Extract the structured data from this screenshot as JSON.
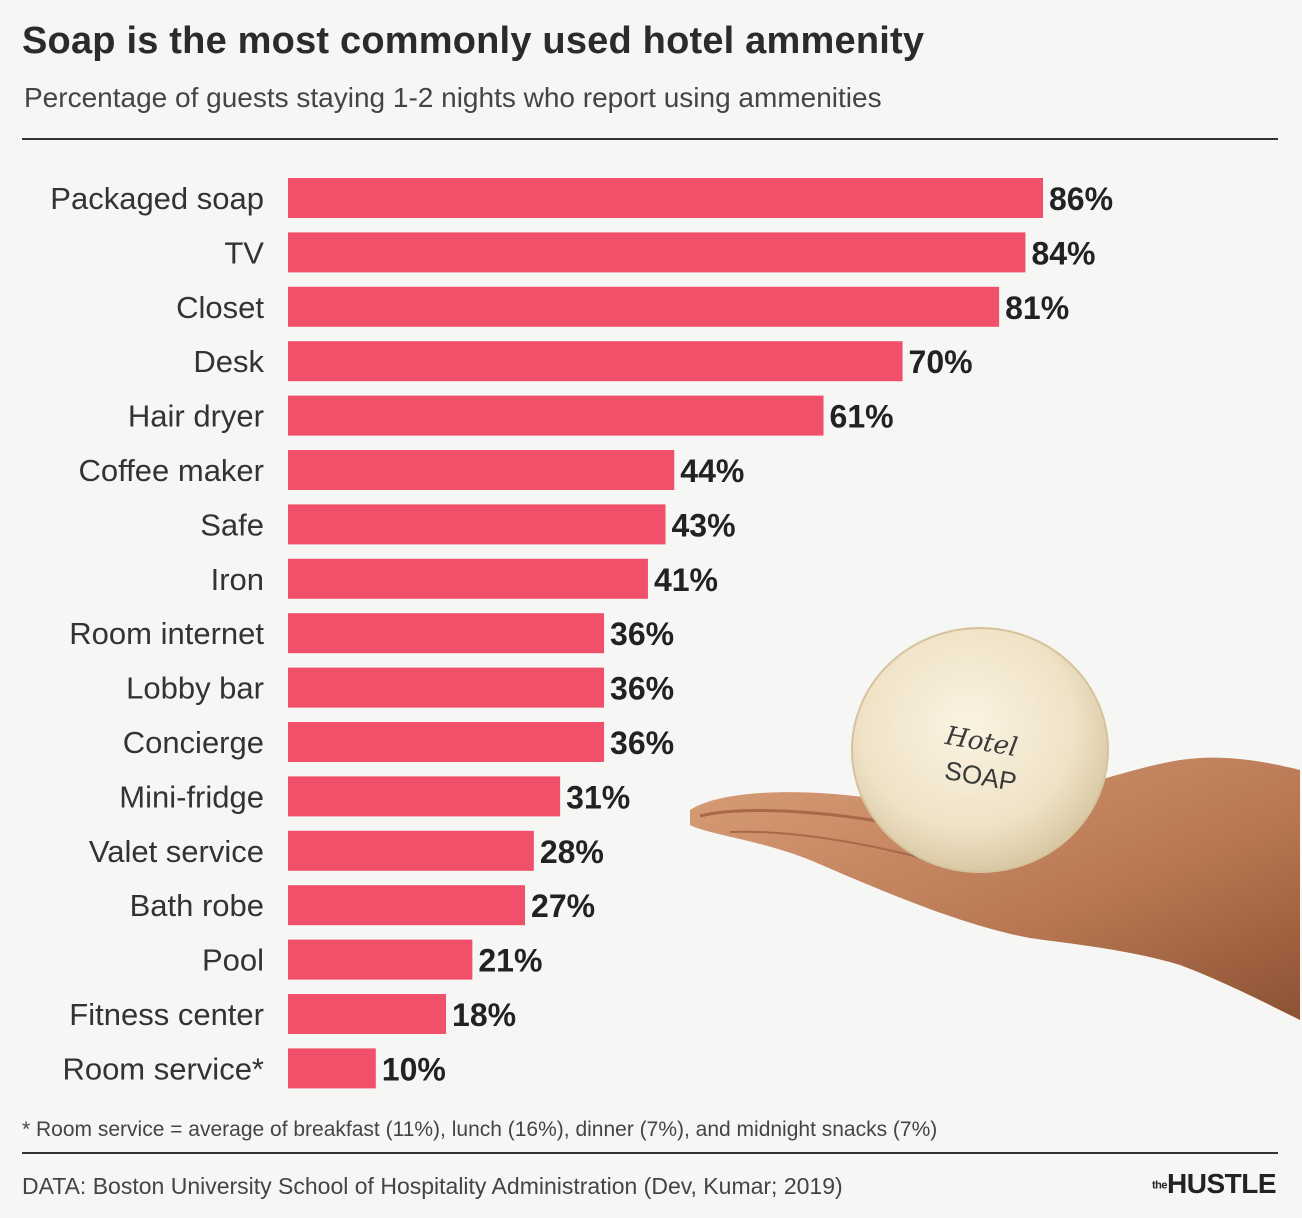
{
  "header": {
    "title": "Soap is the most commonly used hotel ammenity",
    "subtitle": "Percentage of guests staying 1-2 nights who report using ammenities"
  },
  "chart_data": {
    "type": "bar",
    "orientation": "horizontal",
    "categories": [
      "Packaged soap",
      "TV",
      "Closet",
      "Desk",
      "Hair dryer",
      "Coffee maker",
      "Safe",
      "Iron",
      "Room internet",
      "Lobby bar",
      "Concierge",
      "Mini-fridge",
      "Valet service",
      "Bath robe",
      "Pool",
      "Fitness center",
      "Room service*"
    ],
    "values": [
      86,
      84,
      81,
      70,
      61,
      44,
      43,
      41,
      36,
      36,
      36,
      31,
      28,
      27,
      21,
      18,
      10
    ],
    "value_labels": [
      "86%",
      "84%",
      "81%",
      "70%",
      "61%",
      "44%",
      "43%",
      "41%",
      "36%",
      "36%",
      "36%",
      "31%",
      "28%",
      "27%",
      "21%",
      "18%",
      "10%"
    ],
    "unit": "%",
    "xlim": [
      0,
      100
    ],
    "grid": false,
    "legend": "none",
    "bar_color": "#f0506a"
  },
  "footnote": "* Room service = average of breakfast (11%), lunch (16%), dinner (7%), and midnight snacks (7%)",
  "source": "DATA: Boston University School of Hospitality Administration (Dev, Kumar; 2019)",
  "brand": {
    "prefix": "the",
    "name": "HUSTLE"
  },
  "illustration": {
    "soap_line1": "Hotel",
    "soap_line2": "SOAP"
  },
  "colors": {
    "bar": "#f0506a",
    "text": "#222222",
    "background": "#f6f6f4"
  }
}
